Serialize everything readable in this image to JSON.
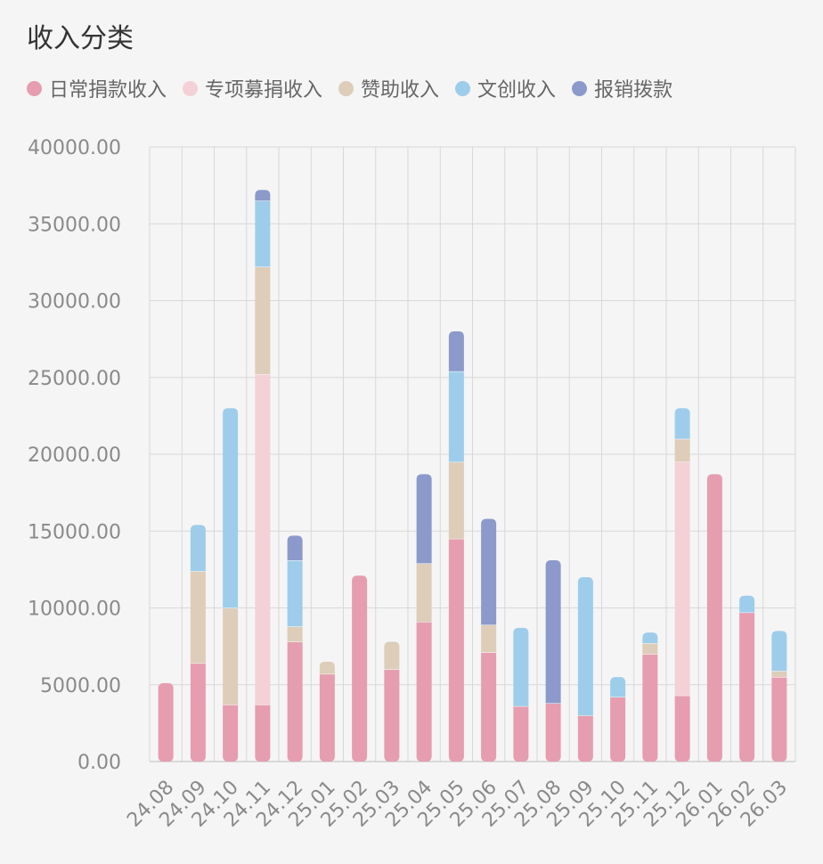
{
  "title": "收入分类",
  "chart_data": {
    "type": "bar",
    "stacked": true,
    "title": "收入分类",
    "categories": [
      "24.08",
      "24.09",
      "24.10",
      "24.11",
      "24.12",
      "25.01",
      "25.02",
      "25.03",
      "25.04",
      "25.05",
      "25.06",
      "25.07",
      "25.08",
      "25.09",
      "25.10",
      "25.11",
      "25.12",
      "26.01",
      "26.02",
      "26.03"
    ],
    "y_tick_labels": [
      "0.00",
      "5000.00",
      "10000.00",
      "15000.00",
      "20000.00",
      "25000.00",
      "30000.00",
      "35000.00",
      "40000.00"
    ],
    "ylim": [
      0,
      40000
    ],
    "grid": true,
    "legend_position": "top-left",
    "series": [
      {
        "name": "日常捐款收入",
        "color": "#e59daf",
        "values": [
          5100,
          6400,
          3700,
          3700,
          7800,
          5700,
          12100,
          6000,
          9100,
          14500,
          7100,
          3600,
          3800,
          3000,
          4200,
          7000,
          4300,
          18700,
          9700,
          5500
        ]
      },
      {
        "name": "专项募捐收入",
        "color": "#f3d1d7",
        "values": [
          0,
          0,
          0,
          21500,
          0,
          0,
          0,
          0,
          0,
          0,
          0,
          0,
          0,
          0,
          0,
          0,
          15200,
          0,
          0,
          0
        ]
      },
      {
        "name": "赞助收入",
        "color": "#ddcdb9",
        "values": [
          0,
          6000,
          6300,
          7000,
          1000,
          800,
          0,
          1800,
          3800,
          5000,
          1800,
          0,
          0,
          0,
          0,
          700,
          1500,
          0,
          0,
          400
        ]
      },
      {
        "name": "文创收入",
        "color": "#9dcdea",
        "values": [
          0,
          3000,
          13000,
          4300,
          4300,
          0,
          0,
          0,
          0,
          5900,
          0,
          5100,
          0,
          9000,
          1300,
          700,
          2000,
          0,
          1100,
          2600
        ]
      },
      {
        "name": "报销拨款",
        "color": "#8b9acb",
        "values": [
          0,
          0,
          0,
          700,
          1600,
          0,
          0,
          0,
          5800,
          2600,
          6900,
          0,
          9300,
          0,
          0,
          0,
          0,
          0,
          0,
          0
        ]
      }
    ]
  }
}
